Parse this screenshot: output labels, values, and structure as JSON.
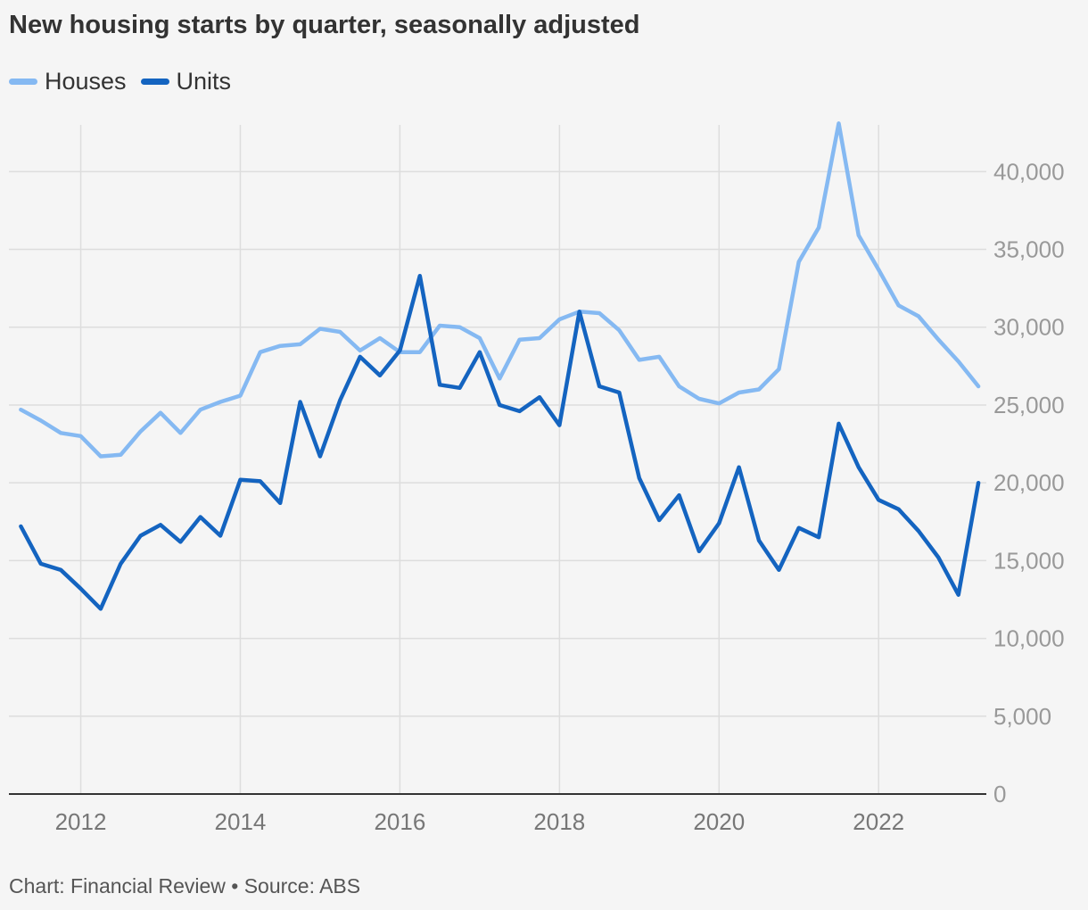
{
  "chart_data": {
    "type": "line",
    "title": "New housing starts by quarter, seasonally adjusted",
    "source": "Chart: Financial Review • Source: ABS",
    "xlabel": "",
    "ylabel": "",
    "xlim": [
      2011.1,
      2023.35
    ],
    "ylim": [
      0,
      43000
    ],
    "x_ticks": [
      2012,
      2014,
      2016,
      2018,
      2020,
      2022
    ],
    "x_tick_labels": [
      "2012",
      "2014",
      "2016",
      "2018",
      "2020",
      "2022"
    ],
    "y_ticks": [
      0,
      5000,
      10000,
      15000,
      20000,
      25000,
      30000,
      35000,
      40000
    ],
    "y_tick_labels": [
      "0",
      "5,000",
      "10,000",
      "15,000",
      "20,000",
      "25,000",
      "30,000",
      "35,000",
      "40,000"
    ],
    "grid": true,
    "legend_position": "top-left",
    "colors": {
      "background": "#f5f5f5",
      "grid": "#dddddd",
      "axis": "#333333",
      "tick_label": "#999999",
      "text": "#333333"
    },
    "x": [
      2011.25,
      2011.5,
      2011.75,
      2012.0,
      2012.25,
      2012.5,
      2012.75,
      2013.0,
      2013.25,
      2013.5,
      2013.75,
      2014.0,
      2014.25,
      2014.5,
      2014.75,
      2015.0,
      2015.25,
      2015.5,
      2015.75,
      2016.0,
      2016.25,
      2016.5,
      2016.75,
      2017.0,
      2017.25,
      2017.5,
      2017.75,
      2018.0,
      2018.25,
      2018.5,
      2018.75,
      2019.0,
      2019.25,
      2019.5,
      2019.75,
      2020.0,
      2020.25,
      2020.5,
      2020.75,
      2021.0,
      2021.25,
      2021.5,
      2021.75,
      2022.0,
      2022.25,
      2022.5,
      2022.75,
      2023.0,
      2023.25
    ],
    "series": [
      {
        "name": "Houses",
        "color": "#85b9f2",
        "values": [
          24700,
          24000,
          23200,
          23000,
          21700,
          21800,
          23300,
          24500,
          23200,
          24700,
          25200,
          25600,
          28400,
          28800,
          28900,
          29900,
          29700,
          28500,
          29300,
          28400,
          28400,
          30100,
          30000,
          29300,
          26700,
          29200,
          29300,
          30500,
          31000,
          30900,
          29800,
          27900,
          28100,
          26200,
          25400,
          25100,
          25800,
          26000,
          27300,
          34200,
          36400,
          43100,
          35900,
          33700,
          31400,
          30700,
          29200,
          27800,
          26200
        ]
      },
      {
        "name": "Units",
        "color": "#1464c0",
        "values": [
          17200,
          14800,
          14400,
          13200,
          11900,
          14800,
          16600,
          17300,
          16200,
          17800,
          16600,
          20200,
          20100,
          18700,
          25200,
          21700,
          25300,
          28100,
          26900,
          28500,
          33300,
          26300,
          26100,
          28400,
          25000,
          24600,
          25500,
          23700,
          31000,
          26200,
          25800,
          20300,
          17600,
          19200,
          15600,
          17400,
          21000,
          16300,
          14400,
          17100,
          16500,
          23800,
          21000,
          18900,
          18300,
          16900,
          15200,
          12800,
          20000
        ]
      }
    ]
  }
}
